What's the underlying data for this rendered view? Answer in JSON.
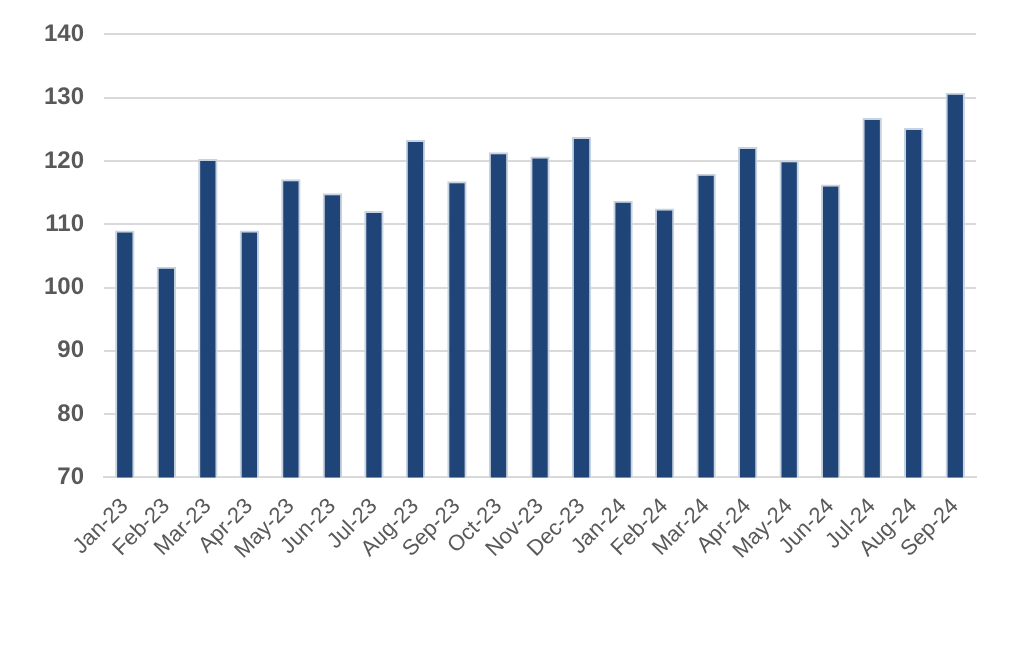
{
  "chart_data": {
    "type": "bar",
    "categories": [
      "Jan-23",
      "Feb-23",
      "Mar-23",
      "Apr-23",
      "May-23",
      "Jun-23",
      "Jul-23",
      "Aug-23",
      "Sep-23",
      "Oct-23",
      "Nov-23",
      "Dec-23",
      "Jan-24",
      "Feb-24",
      "Mar-24",
      "Apr-24",
      "May-24",
      "Jun-24",
      "Jul-24",
      "Aug-24",
      "Sep-24"
    ],
    "values": [
      109,
      103.3,
      120.3,
      109,
      117.1,
      114.9,
      112.1,
      123.3,
      116.8,
      121.4,
      120.7,
      123.8,
      113.7,
      112.5,
      118,
      122.2,
      120.1,
      116.3,
      126.8,
      125.2,
      130.8
    ],
    "color": "#1f4478",
    "ylim": [
      70,
      140
    ],
    "yticks": [
      70,
      80,
      90,
      100,
      110,
      120,
      130,
      140
    ],
    "grid": "y",
    "legend": false
  }
}
